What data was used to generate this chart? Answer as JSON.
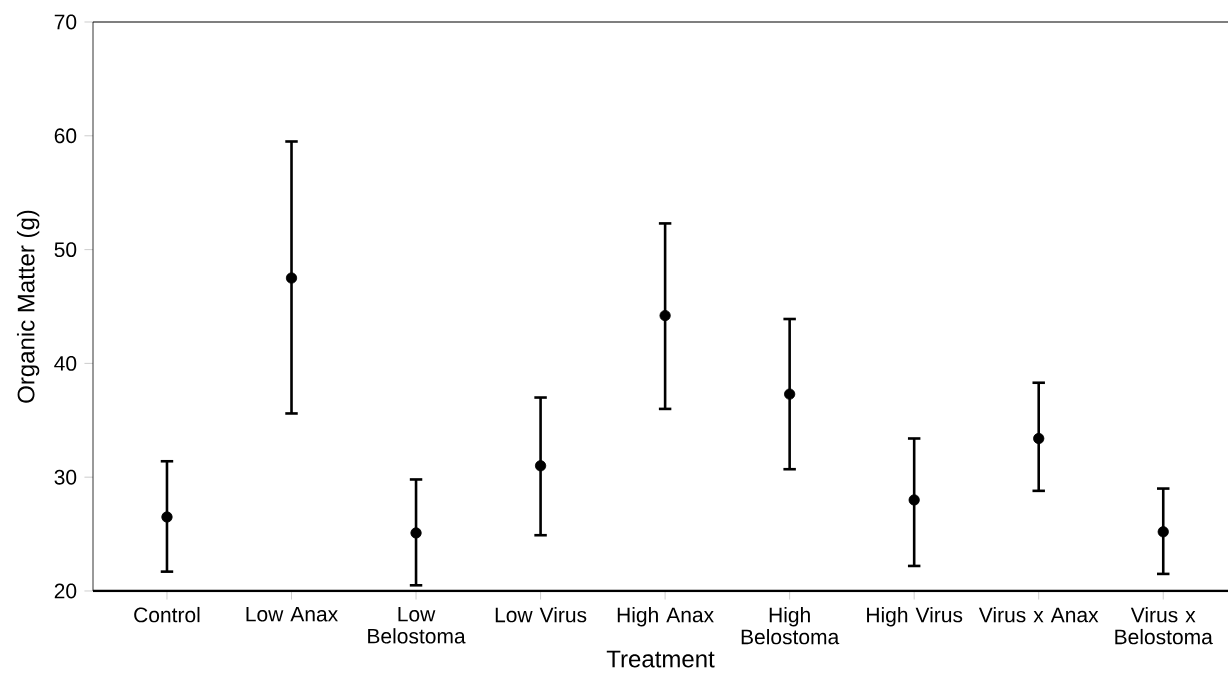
{
  "chart_data": {
    "type": "scatter",
    "xlabel": "Treatment",
    "ylabel": "Organic Matter (g)",
    "categories": [
      "Control",
      "Low Anax",
      "Low Belostoma",
      "Low Virus",
      "High Anax",
      "High Belostoma",
      "High Virus",
      "Virus x Anax",
      "Virus x Belostoma"
    ],
    "series": [
      {
        "color": "#000000",
        "values": [
          26.5,
          47.5,
          25.1,
          31.0,
          44.2,
          37.3,
          28.0,
          33.4,
          25.2
        ],
        "errors": [
          [
            21.7,
            31.4
          ],
          [
            35.6,
            59.5
          ],
          [
            20.5,
            29.8
          ],
          [
            24.9,
            37.0
          ],
          [
            36.0,
            52.3
          ],
          [
            30.7,
            43.9
          ],
          [
            22.2,
            33.4
          ],
          [
            28.8,
            38.3
          ],
          [
            21.5,
            29.0
          ]
        ]
      }
    ],
    "ylim": [
      20,
      70
    ],
    "yticks": [
      20,
      30,
      40,
      50,
      60,
      70
    ],
    "marker": "circle",
    "grid": false
  }
}
